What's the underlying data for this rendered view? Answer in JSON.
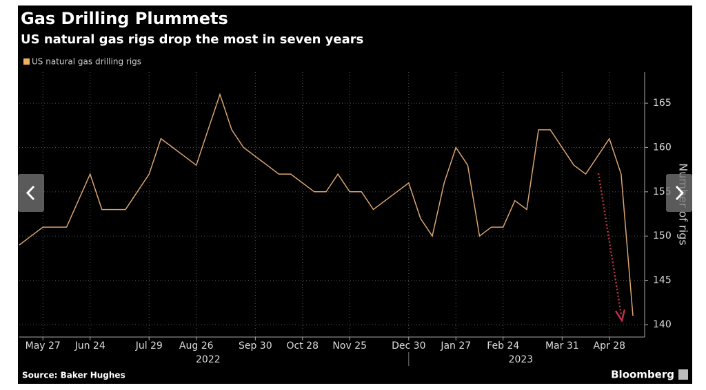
{
  "chart_data": {
    "type": "line",
    "title": "Gas Drilling Plummets",
    "subtitle": "US natural gas rigs drop the most in seven years",
    "categories": [
      null,
      null,
      "May 27",
      null,
      null,
      null,
      "Jun 24",
      null,
      null,
      null,
      null,
      "Jul 29",
      null,
      null,
      null,
      "Aug 26",
      null,
      null,
      null,
      null,
      "Sep 30",
      null,
      null,
      null,
      "Oct 28",
      null,
      null,
      null,
      "Nov 25",
      null,
      null,
      null,
      null,
      "Dec 30",
      null,
      null,
      null,
      "Jan 27",
      null,
      null,
      null,
      "Feb 24",
      null,
      null,
      null,
      null,
      "Mar 31",
      null,
      null,
      null,
      "Apr 28",
      null,
      null
    ],
    "x_groups": [
      {
        "label": "2022",
        "start": 0,
        "end": 32
      },
      {
        "label": "2023",
        "start": 33,
        "end": 52
      }
    ],
    "series": [
      {
        "name": "US natural gas drilling rigs",
        "color": "#dba571",
        "values": [
          149,
          150,
          151,
          151,
          151,
          154,
          157,
          153,
          153,
          153,
          155,
          157,
          161,
          160,
          159,
          158,
          162,
          166,
          162,
          160,
          159,
          158,
          157,
          157,
          156,
          155,
          155,
          157,
          155,
          155,
          153,
          154,
          155,
          156,
          152,
          150,
          156,
          160,
          158,
          150,
          151,
          151,
          154,
          153,
          162,
          162,
          160,
          158,
          157,
          159,
          161,
          157,
          141
        ]
      }
    ],
    "y_label": "Number of rigs",
    "ylim": [
      138.6,
      168.5
    ],
    "yticks": [
      140,
      145,
      150,
      155,
      160,
      165
    ],
    "grid": true,
    "source": "Source: Baker Hughes",
    "logo": "Bloomberg"
  }
}
